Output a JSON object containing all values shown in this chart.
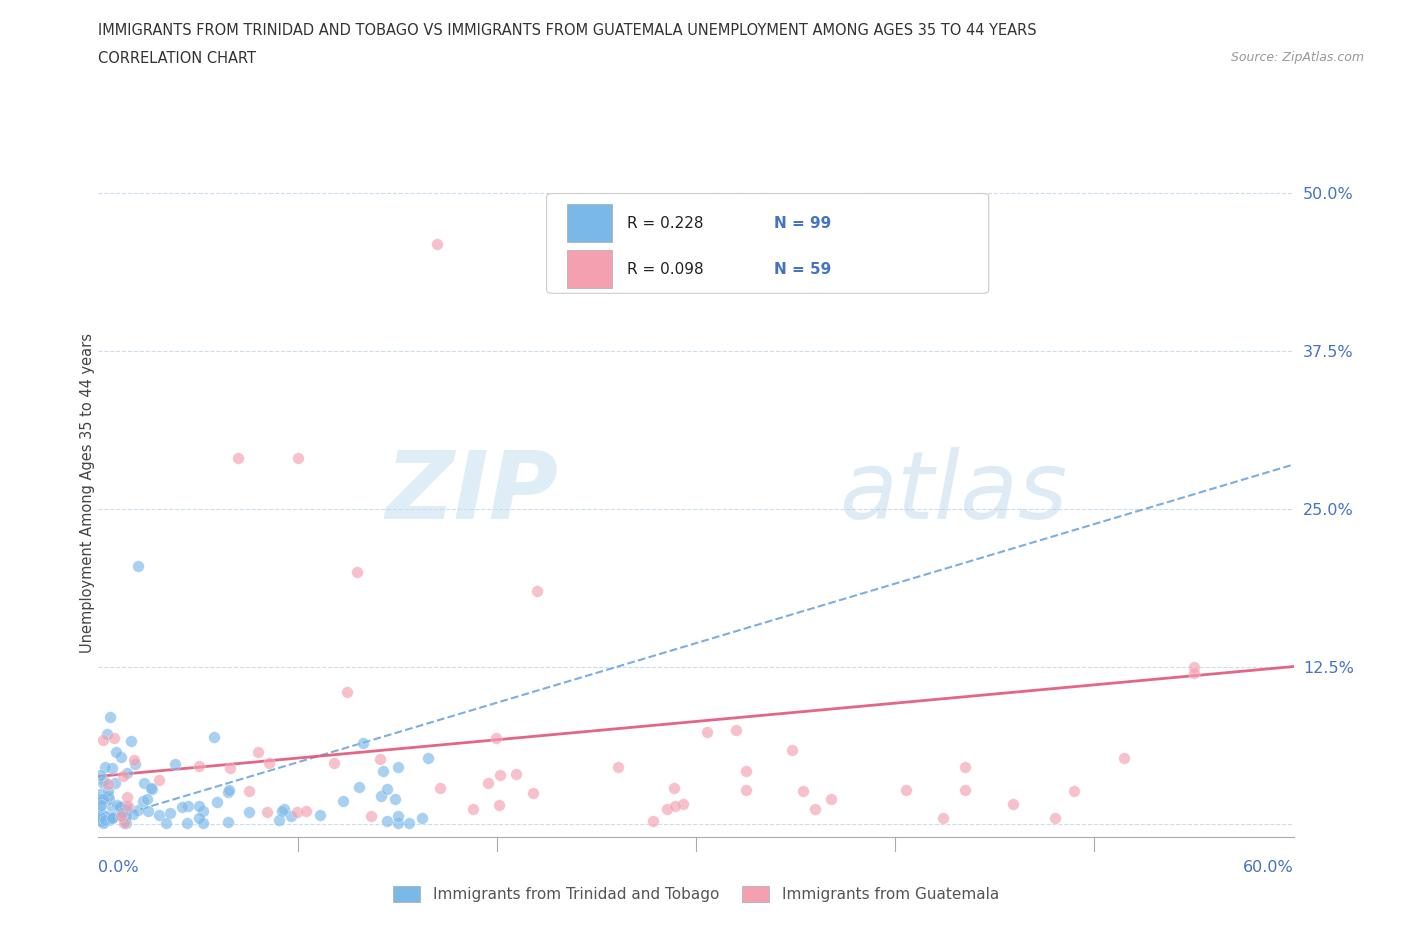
{
  "title_line1": "IMMIGRANTS FROM TRINIDAD AND TOBAGO VS IMMIGRANTS FROM GUATEMALA UNEMPLOYMENT AMONG AGES 35 TO 44 YEARS",
  "title_line2": "CORRELATION CHART",
  "source_text": "Source: ZipAtlas.com",
  "ylabel": "Unemployment Among Ages 35 to 44 years",
  "x_label_bottom_left": "0.0%",
  "x_label_bottom_right": "60.0%",
  "legend_label_1": "Immigrants from Trinidad and Tobago",
  "legend_label_2": "Immigrants from Guatemala",
  "R1": 0.228,
  "N1": 99,
  "R2": 0.098,
  "N2": 59,
  "color1": "#7ab8e8",
  "color2": "#f4a0b0",
  "trendline1_color": "#5b9bd5",
  "trendline2_color": "#e05577",
  "ytick_labels_right": [
    "12.5%",
    "25.0%",
    "37.5%",
    "50.0%"
  ],
  "ytick_values": [
    0.0,
    0.125,
    0.25,
    0.375,
    0.5
  ],
  "xlim": [
    0.0,
    0.6
  ],
  "ylim": [
    -0.01,
    0.535
  ],
  "watermark_zip": "ZIP",
  "watermark_atlas": "atlas",
  "background_color": "#ffffff",
  "grid_color": "#c8d8e8",
  "trendline1_start_x": 0.0,
  "trendline1_start_y": 0.002,
  "trendline1_end_x": 0.6,
  "trendline1_end_y": 0.285,
  "trendline2_start_x": 0.0,
  "trendline2_start_y": 0.038,
  "trendline2_end_x": 0.6,
  "trendline2_end_y": 0.125
}
